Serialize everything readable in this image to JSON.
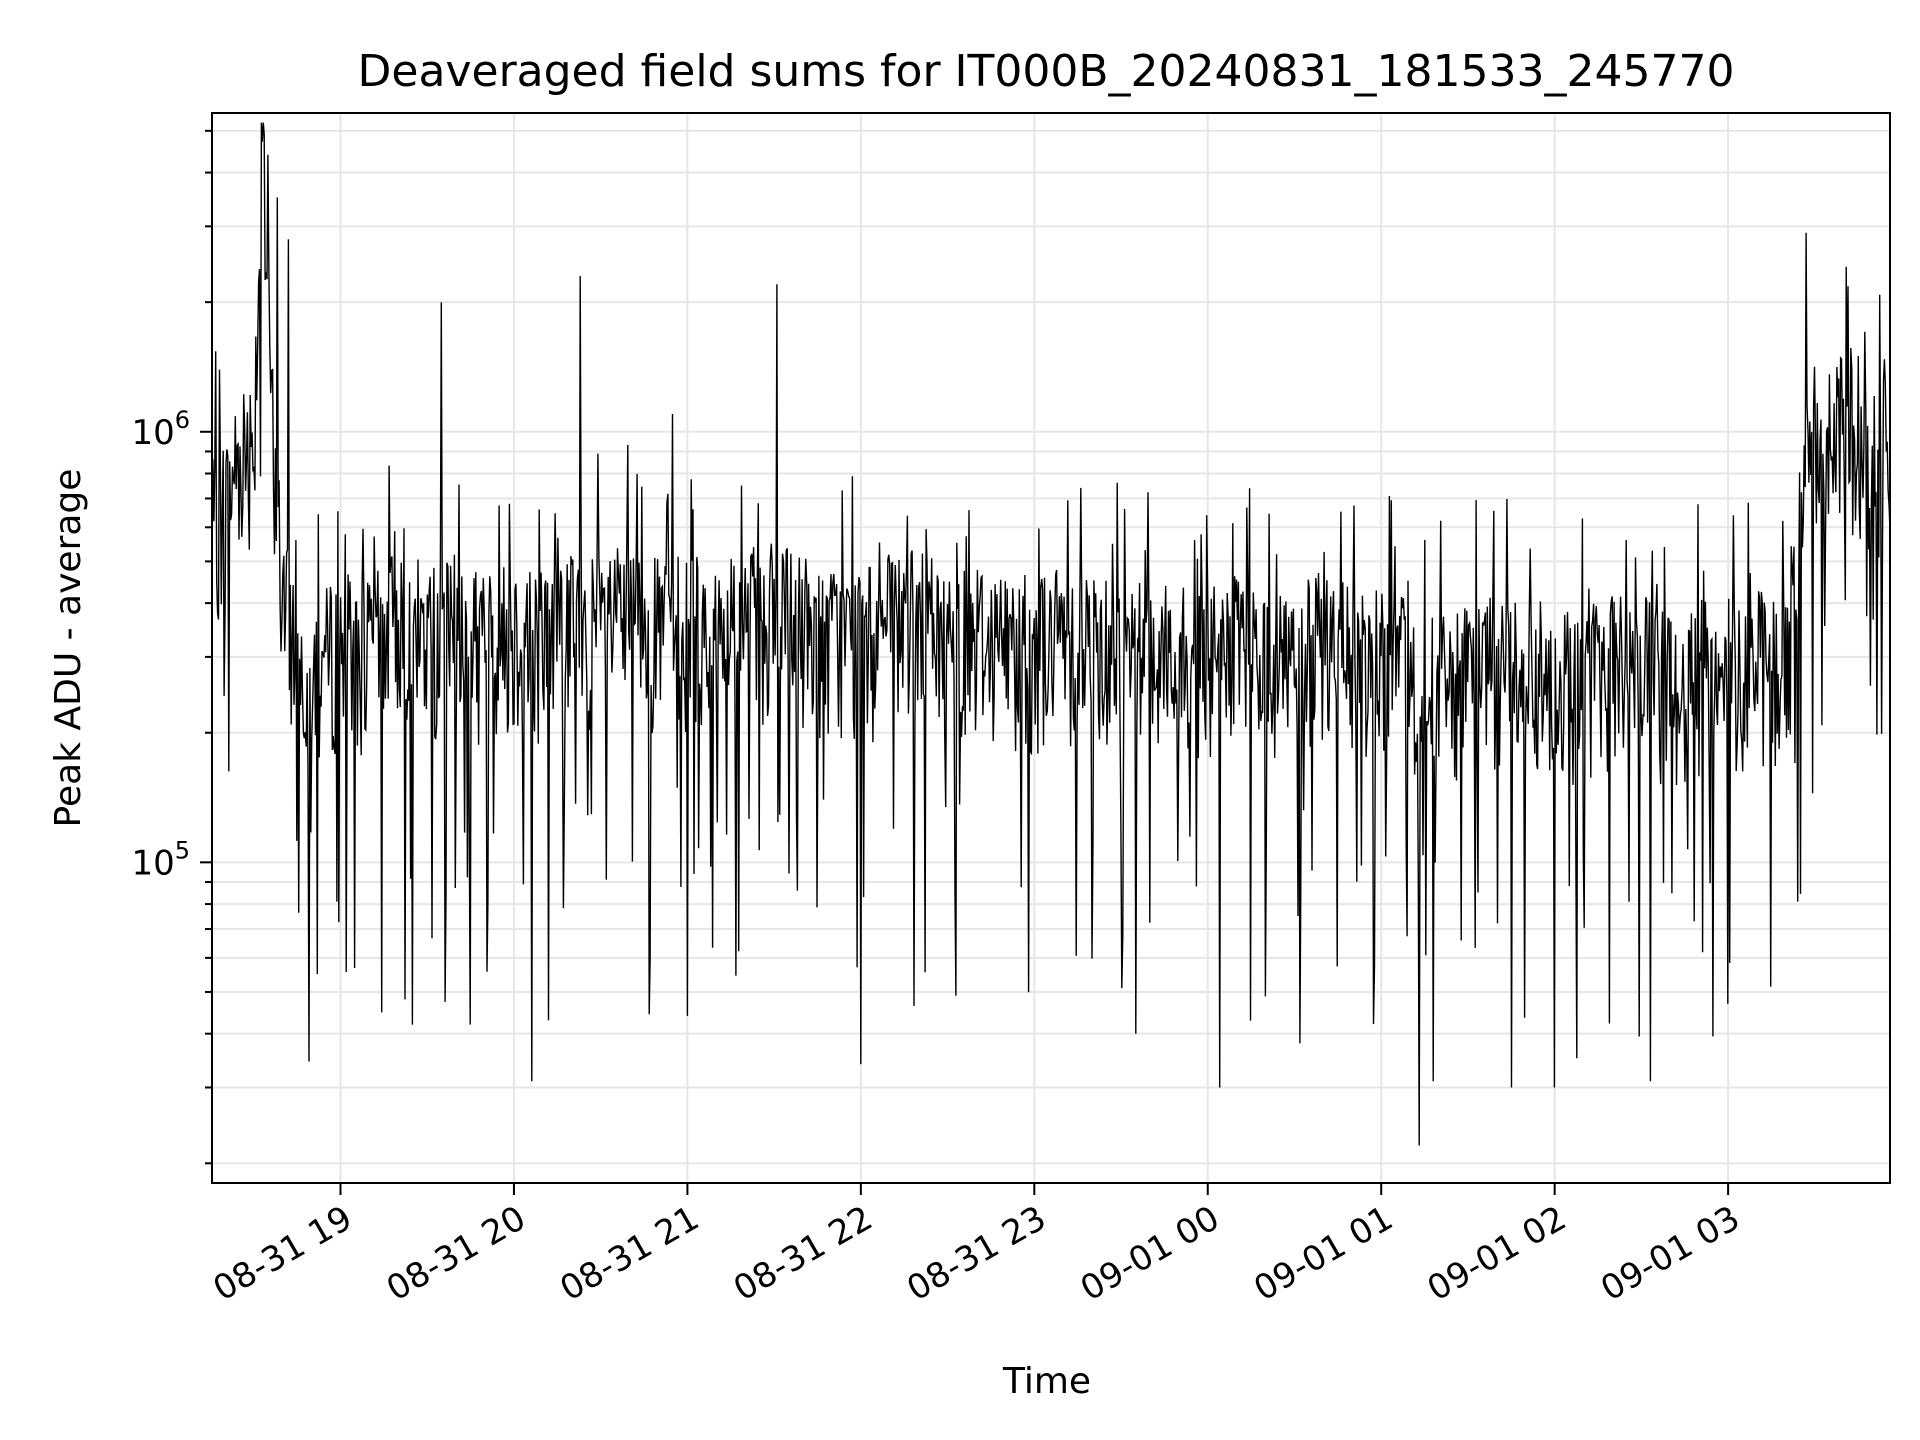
{
  "chart_data": {
    "type": "line",
    "title": "Deaveraged field sums for IT000B_20240831_181533_245770",
    "xlabel": "Time",
    "ylabel": "Peak ADU - average",
    "y_scale": "log",
    "ylim": [
      18000,
      5500000
    ],
    "xlim": [
      "2024-08-31 18:15:33",
      "2024-09-01 03:56:00"
    ],
    "grid": true,
    "line_color": "#000000",
    "x_ticks": [
      {
        "value": "2024-08-31 19:00",
        "label": "08-31 19"
      },
      {
        "value": "2024-08-31 20:00",
        "label": "08-31 20"
      },
      {
        "value": "2024-08-31 21:00",
        "label": "08-31 21"
      },
      {
        "value": "2024-08-31 22:00",
        "label": "08-31 22"
      },
      {
        "value": "2024-08-31 23:00",
        "label": "08-31 23"
      },
      {
        "value": "2024-09-01 00:00",
        "label": "09-01 00"
      },
      {
        "value": "2024-09-01 01:00",
        "label": "09-01 01"
      },
      {
        "value": "2024-09-01 02:00",
        "label": "09-01 02"
      },
      {
        "value": "2024-09-01 03:00",
        "label": "09-01 03"
      }
    ],
    "y_ticks": [
      {
        "value": 100000,
        "base": "10",
        "exp": "5"
      },
      {
        "value": 1000000,
        "base": "10",
        "exp": "6"
      }
    ],
    "series": [
      {
        "x": [
          "2024-08-31 18:16",
          "2024-08-31 18:20",
          "2024-08-31 18:25",
          "2024-08-31 18:30",
          "2024-08-31 18:33",
          "2024-08-31 18:36",
          "2024-08-31 18:40",
          "2024-08-31 18:45",
          "2024-08-31 18:50",
          "2024-08-31 18:55",
          "2024-08-31 19:00",
          "2024-08-31 19:10",
          "2024-08-31 19:20",
          "2024-08-31 19:30",
          "2024-08-31 19:40",
          "2024-08-31 19:50",
          "2024-08-31 20:00",
          "2024-08-31 20:10",
          "2024-08-31 20:20",
          "2024-08-31 20:30",
          "2024-08-31 20:40",
          "2024-08-31 20:50",
          "2024-08-31 21:00",
          "2024-08-31 21:10",
          "2024-08-31 21:20",
          "2024-08-31 21:30",
          "2024-08-31 21:40",
          "2024-08-31 21:50",
          "2024-08-31 22:00",
          "2024-08-31 22:10",
          "2024-08-31 22:20",
          "2024-08-31 22:30",
          "2024-08-31 22:40",
          "2024-08-31 22:50",
          "2024-08-31 23:00",
          "2024-08-31 23:10",
          "2024-08-31 23:20",
          "2024-08-31 23:30",
          "2024-08-31 23:40",
          "2024-08-31 23:50",
          "2024-09-01 00:00",
          "2024-09-01 00:10",
          "2024-09-01 00:20",
          "2024-09-01 00:30",
          "2024-09-01 00:40",
          "2024-09-01 00:50",
          "2024-09-01 01:00",
          "2024-09-01 01:10",
          "2024-09-01 01:20",
          "2024-09-01 01:30",
          "2024-09-01 01:40",
          "2024-09-01 01:50",
          "2024-09-01 02:00",
          "2024-09-01 02:10",
          "2024-09-01 02:20",
          "2024-09-01 02:30",
          "2024-09-01 02:40",
          "2024-09-01 02:50",
          "2024-09-01 03:00",
          "2024-09-01 03:10",
          "2024-09-01 03:20",
          "2024-09-01 03:25",
          "2024-09-01 03:30",
          "2024-09-01 03:35",
          "2024-09-01 03:40",
          "2024-09-01 03:45",
          "2024-09-01 03:50",
          "2024-09-01 03:55"
        ],
        "y": [
          600000,
          680000,
          900000,
          1000000,
          4500000,
          1200000,
          400000,
          320000,
          280000,
          300000,
          330000,
          310000,
          380000,
          340000,
          360000,
          330000,
          350000,
          340000,
          370000,
          360000,
          380000,
          350000,
          360000,
          350000,
          370000,
          380000,
          360000,
          340000,
          330000,
          360000,
          370000,
          340000,
          350000,
          330000,
          320000,
          340000,
          330000,
          320000,
          330000,
          310000,
          300000,
          320000,
          290000,
          310000,
          330000,
          300000,
          310000,
          280000,
          260000,
          270000,
          300000,
          290000,
          280000,
          270000,
          300000,
          290000,
          260000,
          280000,
          290000,
          300000,
          280000,
          650000,
          1100000,
          950000,
          1050000,
          1000000,
          900000,
          950000
        ],
        "lows": [
          {
            "x": "2024-08-31 18:52",
            "y": 55000
          },
          {
            "x": "2024-08-31 19:25",
            "y": 42000
          },
          {
            "x": "2024-08-31 19:45",
            "y": 42000
          },
          {
            "x": "2024-08-31 20:06",
            "y": 31000
          },
          {
            "x": "2024-08-31 20:12",
            "y": 43000
          },
          {
            "x": "2024-08-31 21:00",
            "y": 44000
          },
          {
            "x": "2024-08-31 22:00",
            "y": 34000
          },
          {
            "x": "2024-08-31 22:33",
            "y": 49000
          },
          {
            "x": "2024-08-31 23:35",
            "y": 40000
          },
          {
            "x": "2024-09-01 00:04",
            "y": 30000
          },
          {
            "x": "2024-09-01 00:32",
            "y": 38000
          },
          {
            "x": "2024-09-01 01:13",
            "y": 22000
          },
          {
            "x": "2024-09-01 01:18",
            "y": 31000
          },
          {
            "x": "2024-09-01 01:45",
            "y": 30000
          },
          {
            "x": "2024-09-01 02:00",
            "y": 30000
          },
          {
            "x": "2024-09-01 02:33",
            "y": 31000
          }
        ],
        "highs": [
          {
            "x": "2024-08-31 18:35",
            "y": 4400000
          },
          {
            "x": "2024-08-31 18:38",
            "y": 3500000
          },
          {
            "x": "2024-08-31 18:42",
            "y": 2800000
          },
          {
            "x": "2024-08-31 19:35",
            "y": 2000000
          },
          {
            "x": "2024-08-31 20:23",
            "y": 2300000
          },
          {
            "x": "2024-08-31 20:55",
            "y": 1100000
          },
          {
            "x": "2024-08-31 21:31",
            "y": 2200000
          },
          {
            "x": "2024-09-01 03:27",
            "y": 2900000
          },
          {
            "x": "2024-09-01 03:45",
            "y": 1500000
          }
        ]
      }
    ]
  }
}
